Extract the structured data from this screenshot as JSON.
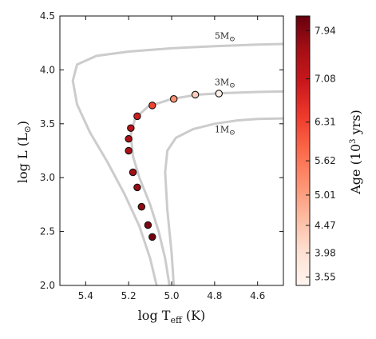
{
  "chart_data": {
    "type": "scatter",
    "xlabel": "log T",
    "xlabel_sub": "eff",
    "xlabel_unit": " (K)",
    "ylabel": "log L (L",
    "ylabel_sun": "⊙",
    "ylabel_close": ")",
    "xlim": [
      5.52,
      4.48
    ],
    "ylim": [
      2.0,
      4.5
    ],
    "x_ticks": [
      5.4,
      5.2,
      5.0,
      4.8,
      4.6
    ],
    "x_tick_labels": [
      "5.4",
      "5.2",
      "5.0",
      "4.8",
      "4.6"
    ],
    "y_ticks": [
      2.0,
      2.5,
      3.0,
      3.5,
      4.0,
      4.5
    ],
    "y_tick_labels": [
      "2.0",
      "2.5",
      "3.0",
      "3.5",
      "4.0",
      "4.5"
    ],
    "grid": false,
    "tracks": [
      {
        "label": "5M",
        "label_sun": "⊙",
        "label_at": [
          4.8,
          4.29
        ],
        "color": "#cccccc",
        "points": [
          [
            5.07,
            2.0
          ],
          [
            5.1,
            2.25
          ],
          [
            5.15,
            2.55
          ],
          [
            5.22,
            2.85
          ],
          [
            5.3,
            3.15
          ],
          [
            5.38,
            3.42
          ],
          [
            5.44,
            3.68
          ],
          [
            5.46,
            3.9
          ],
          [
            5.44,
            4.05
          ],
          [
            5.35,
            4.13
          ],
          [
            5.2,
            4.17
          ],
          [
            5.0,
            4.2
          ],
          [
            4.8,
            4.22
          ],
          [
            4.6,
            4.235
          ],
          [
            4.48,
            4.24
          ]
        ]
      },
      {
        "label": "3M",
        "label_sun": "⊙",
        "label_at": [
          4.8,
          3.86
        ],
        "color": "#cccccc",
        "points": [
          [
            5.01,
            2.0
          ],
          [
            5.03,
            2.25
          ],
          [
            5.06,
            2.5
          ],
          [
            5.1,
            2.75
          ],
          [
            5.15,
            3.0
          ],
          [
            5.18,
            3.2
          ],
          [
            5.19,
            3.4
          ],
          [
            5.17,
            3.55
          ],
          [
            5.11,
            3.66
          ],
          [
            5.0,
            3.73
          ],
          [
            4.88,
            3.77
          ],
          [
            4.75,
            3.785
          ],
          [
            4.6,
            3.795
          ],
          [
            4.48,
            3.8
          ]
        ]
      },
      {
        "label": "1M",
        "label_sun": "⊙",
        "label_at": [
          4.8,
          3.42
        ],
        "color": "#cccccc",
        "points": [
          [
            4.99,
            2.0
          ],
          [
            5.0,
            2.3
          ],
          [
            5.02,
            2.7
          ],
          [
            5.03,
            3.05
          ],
          [
            5.02,
            3.25
          ],
          [
            4.98,
            3.37
          ],
          [
            4.9,
            3.45
          ],
          [
            4.8,
            3.5
          ],
          [
            4.7,
            3.53
          ],
          [
            4.6,
            3.545
          ],
          [
            4.48,
            3.55
          ]
        ]
      }
    ],
    "points": [
      {
        "logT": 5.09,
        "logL": 2.45,
        "age": 8.1
      },
      {
        "logT": 5.11,
        "logL": 2.56,
        "age": 7.95
      },
      {
        "logT": 5.14,
        "logL": 2.73,
        "age": 7.8
      },
      {
        "logT": 5.16,
        "logL": 2.91,
        "age": 7.7
      },
      {
        "logT": 5.18,
        "logL": 3.05,
        "age": 7.6
      },
      {
        "logT": 5.2,
        "logL": 3.25,
        "age": 7.5
      },
      {
        "logT": 5.2,
        "logL": 3.36,
        "age": 7.45
      },
      {
        "logT": 5.19,
        "logL": 3.46,
        "age": 7.3
      },
      {
        "logT": 5.16,
        "logL": 3.57,
        "age": 6.9
      },
      {
        "logT": 5.09,
        "logL": 3.67,
        "age": 6.3
      },
      {
        "logT": 4.99,
        "logL": 3.73,
        "age": 5.2
      },
      {
        "logT": 4.89,
        "logL": 3.77,
        "age": 4.3
      },
      {
        "logT": 4.78,
        "logL": 3.78,
        "age": 3.55
      }
    ],
    "colorbar": {
      "label": "Age (10",
      "label_exp": "3",
      "label_unit": " yrs)",
      "vmin": 3.4,
      "vmax": 8.2,
      "ticks": [
        3.55,
        3.98,
        4.47,
        5.01,
        5.62,
        6.31,
        7.08,
        7.94
      ],
      "tick_labels": [
        "3.55",
        "3.98",
        "4.47",
        "5.01",
        "5.62",
        "6.31",
        "7.08",
        "7.94"
      ],
      "cmap": [
        "#fff5f0",
        "#fee0d2",
        "#fcbba1",
        "#fc9272",
        "#fb6a4a",
        "#ef3b2c",
        "#cb181d",
        "#a50f15",
        "#67000d"
      ]
    }
  }
}
